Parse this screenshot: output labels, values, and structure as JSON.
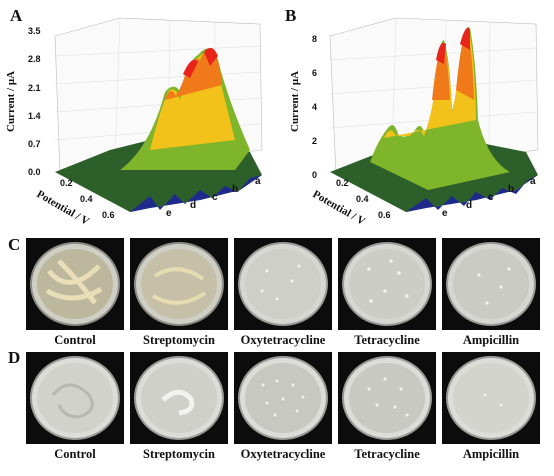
{
  "panels": {
    "A": {
      "letter": "A",
      "y_ticks": [
        "3.5",
        "2.8",
        "2.1",
        "1.4",
        "0.7",
        "0.0"
      ],
      "x_ticks": [
        "0.2",
        "0.4",
        "0.6"
      ],
      "ylabel": "Current / μA",
      "xlabel": "Potential / V",
      "curves": [
        "a",
        "b",
        "c",
        "d",
        "e"
      ]
    },
    "B": {
      "letter": "B",
      "y_ticks": [
        "8",
        "6",
        "4",
        "2",
        "0"
      ],
      "x_ticks": [
        "0.2",
        "0.4",
        "0.6"
      ],
      "ylabel": "Current / μA",
      "xlabel": "Potential / V",
      "curves": [
        "a",
        "b",
        "c",
        "d",
        "e"
      ]
    },
    "C": {
      "letter": "C",
      "labels": [
        "Control",
        "Streptomycin",
        "Oxytetracycline",
        "Tetracycline",
        "Ampicillin"
      ]
    },
    "D": {
      "letter": "D",
      "labels": [
        "Control",
        "Streptomycin",
        "Oxytetracycline",
        "Tetracycline",
        "Ampicillin"
      ]
    }
  },
  "colors": {
    "peak_top": "#e8251a",
    "mid": "#f2c21a",
    "low": "#7fb52a",
    "base": "#2c5f2a",
    "front": "#1e2a8c"
  }
}
